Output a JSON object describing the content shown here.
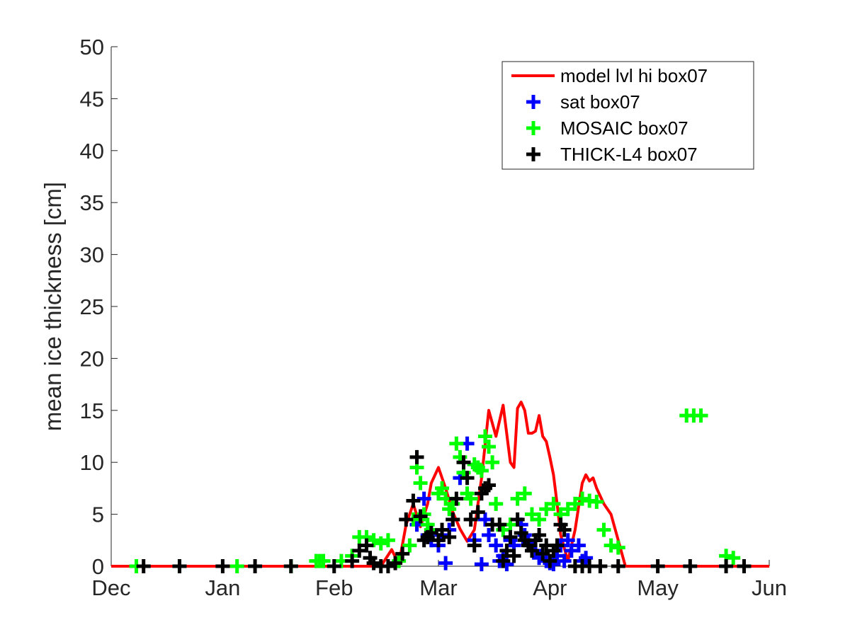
{
  "chart_data": {
    "type": "line",
    "title": "",
    "xlabel": "",
    "ylabel": "mean ice thickness [cm]",
    "xlim": [
      "Dec 1",
      "Jun 1"
    ],
    "ylim": [
      0,
      50
    ],
    "x_ticks": [
      "Dec",
      "Jan",
      "Feb",
      "Mar",
      "Apr",
      "May",
      "Jun"
    ],
    "y_ticks": [
      0,
      5,
      10,
      15,
      20,
      25,
      30,
      35,
      40,
      45,
      50
    ],
    "grid": false,
    "legend_position": "top-right",
    "series": [
      {
        "name": "model lvl hi box07",
        "kind": "line",
        "color": "#ff0000",
        "x": [
          "Dec 1",
          "Jan 1",
          "Feb 1",
          "Feb 10",
          "Feb 14",
          "Feb 17",
          "Feb 19",
          "Feb 21",
          "Feb 23",
          "Feb 25",
          "Feb 27",
          "Feb 28",
          "Mar 1",
          "Mar 3",
          "Mar 5",
          "Mar 7",
          "Mar 9",
          "Mar 11",
          "Mar 13",
          "Mar 15",
          "Mar 17",
          "Mar 19",
          "Mar 21",
          "Mar 22",
          "Mar 23",
          "Mar 24",
          "Mar 25",
          "Mar 26",
          "Mar 27",
          "Mar 28",
          "Mar 29",
          "Mar 30",
          "Mar 31",
          "Apr 1",
          "Apr 2",
          "Apr 3",
          "Apr 4",
          "Apr 6",
          "Apr 8",
          "Apr 10",
          "Apr 11",
          "Apr 12",
          "Apr 13",
          "Apr 14",
          "Apr 16",
          "Apr 18",
          "Apr 20",
          "Apr 22",
          "Apr 23",
          "Apr 25",
          "May 1",
          "Jun 1"
        ],
        "y": [
          0,
          0,
          0,
          0,
          0,
          1.6,
          0.2,
          4.0,
          6.0,
          3.8,
          6.0,
          8.0,
          9.5,
          7.5,
          5.2,
          3.6,
          2.4,
          3.5,
          8.5,
          15.0,
          12.5,
          15.5,
          10.0,
          9.5,
          15.2,
          15.8,
          15.0,
          12.8,
          12.8,
          13.0,
          14.5,
          12.5,
          12.0,
          10.5,
          8.8,
          6.0,
          3.0,
          0.5,
          3.5,
          8.0,
          8.8,
          8.2,
          8.5,
          7.5,
          6.0,
          5.0,
          2.5,
          0,
          0,
          0,
          0,
          0
        ]
      },
      {
        "name": "sat box07",
        "kind": "scatter",
        "marker": "+",
        "color": "#0000ff",
        "x": [
          "Feb 24",
          "Feb 26",
          "Feb 27",
          "Feb 28",
          "Mar 1",
          "Mar 2",
          "Mar 3",
          "Mar 4",
          "Mar 5",
          "Mar 7",
          "Mar 9",
          "Mar 11",
          "Mar 13",
          "Mar 14",
          "Mar 15",
          "Mar 17",
          "Mar 18",
          "Mar 19",
          "Mar 20",
          "Mar 21",
          "Mar 22",
          "Mar 24",
          "Mar 25",
          "Mar 26",
          "Mar 28",
          "Mar 29",
          "Mar 31",
          "Apr 1",
          "Apr 2",
          "Apr 3",
          "Apr 4",
          "Apr 5",
          "Apr 6",
          "Apr 7",
          "Apr 9",
          "Apr 10",
          "Apr 11"
        ],
        "y": [
          4.0,
          6.5,
          3.0,
          2.5,
          2.0,
          3.0,
          0.3,
          3.5,
          4.5,
          8.5,
          11.8,
          2.5,
          0.2,
          4.5,
          3.0,
          2.0,
          0.5,
          1.0,
          0.2,
          2.5,
          2.0,
          4.0,
          3.0,
          2.2,
          1.5,
          0.8,
          0.5,
          0.3,
          0.2,
          1.0,
          2.0,
          0.5,
          2.5,
          1.5,
          2.0,
          0.5,
          0.8
        ]
      },
      {
        "name": "MOSAIC box07",
        "kind": "scatter",
        "marker": "+",
        "color": "#00ff00",
        "x": [
          "Dec 8",
          "Dec 20",
          "Jan 5",
          "Jan 20",
          "Jan 27",
          "Jan 28",
          "Jan 29",
          "Feb 3",
          "Feb 6",
          "Feb 8",
          "Feb 10",
          "Feb 12",
          "Feb 14",
          "Feb 16",
          "Feb 19",
          "Feb 22",
          "Feb 23",
          "Feb 24",
          "Feb 25",
          "Feb 26",
          "Feb 27",
          "Feb 28",
          "Mar 1",
          "Mar 2",
          "Mar 3",
          "Mar 4",
          "Mar 5",
          "Mar 6",
          "Mar 7",
          "Mar 8",
          "Mar 9",
          "Mar 10",
          "Mar 11",
          "Mar 12",
          "Mar 13",
          "Mar 14",
          "Mar 15",
          "Mar 16",
          "Mar 17",
          "Mar 19",
          "Mar 21",
          "Mar 23",
          "Mar 25",
          "Mar 27",
          "Mar 29",
          "Mar 31",
          "Apr 2",
          "Apr 4",
          "Apr 6",
          "Apr 8",
          "Apr 10",
          "Apr 12",
          "Apr 14",
          "Apr 16",
          "Apr 18",
          "Apr 20",
          "May 9",
          "May 11",
          "May 13",
          "May 20",
          "May 22"
        ],
        "y": [
          0,
          0,
          0,
          0,
          0.5,
          0.5,
          0.5,
          0.5,
          1.0,
          2.8,
          2.8,
          2.5,
          2.2,
          2.5,
          0.5,
          2.0,
          4.5,
          9.5,
          8.0,
          5.0,
          4.0,
          3.5,
          7.0,
          7.5,
          6.5,
          5.5,
          6.0,
          11.8,
          10.5,
          9.0,
          7.0,
          6.5,
          9.8,
          9.5,
          9.2,
          12.5,
          11.5,
          10.0,
          6.0,
          3.5,
          4.0,
          6.5,
          7.0,
          5.0,
          4.5,
          5.5,
          6.0,
          5.0,
          5.5,
          6.0,
          6.5,
          6.3,
          6.2,
          3.5,
          2.0,
          1.8,
          14.5,
          14.5,
          14.5,
          1.0,
          0.8
        ]
      },
      {
        "name": "THICK-L4 box07",
        "kind": "scatter",
        "marker": "+",
        "color": "#000000",
        "x": [
          "Dec 10",
          "Dec 20",
          "Jan 1",
          "Jan 10",
          "Jan 20",
          "Feb 1",
          "Feb 6",
          "Feb 8",
          "Feb 10",
          "Feb 11",
          "Feb 12",
          "Feb 14",
          "Feb 16",
          "Feb 18",
          "Feb 20",
          "Feb 21",
          "Feb 23",
          "Feb 24",
          "Feb 25",
          "Feb 26",
          "Feb 27",
          "Feb 28",
          "Mar 1",
          "Mar 2",
          "Mar 4",
          "Mar 5",
          "Mar 6",
          "Mar 8",
          "Mar 9",
          "Mar 10",
          "Mar 11",
          "Mar 12",
          "Mar 13",
          "Mar 14",
          "Mar 15",
          "Mar 16",
          "Mar 18",
          "Mar 19",
          "Mar 20",
          "Mar 21",
          "Mar 22",
          "Mar 23",
          "Mar 24",
          "Mar 25",
          "Mar 26",
          "Mar 27",
          "Mar 28",
          "Mar 29",
          "Mar 30",
          "Mar 31",
          "Apr 1",
          "Apr 2",
          "Apr 3",
          "Apr 4",
          "Apr 5",
          "Apr 8",
          "Apr 10",
          "Apr 12",
          "Apr 15",
          "Apr 20",
          "May 1",
          "May 10",
          "May 20",
          "May 25"
        ],
        "y": [
          0,
          0,
          0,
          0,
          0,
          0,
          0.5,
          1.5,
          2.0,
          0.8,
          0.3,
          0,
          0,
          0.3,
          1.2,
          4.5,
          6.3,
          10.5,
          4.8,
          2.5,
          2.8,
          3.2,
          2.5,
          3.5,
          2.8,
          4.5,
          6.5,
          10.0,
          8.5,
          4.5,
          2.0,
          5.2,
          7.0,
          7.5,
          7.8,
          4.0,
          4.0,
          0.5,
          1.5,
          2.8,
          1.0,
          4.5,
          3.2,
          2.5,
          2.0,
          1.5,
          2.5,
          3.0,
          1.2,
          2.0,
          0.5,
          1.5,
          2.0,
          4.0,
          3.5,
          0,
          0,
          0,
          0,
          0,
          0,
          0,
          0,
          0
        ]
      }
    ]
  }
}
